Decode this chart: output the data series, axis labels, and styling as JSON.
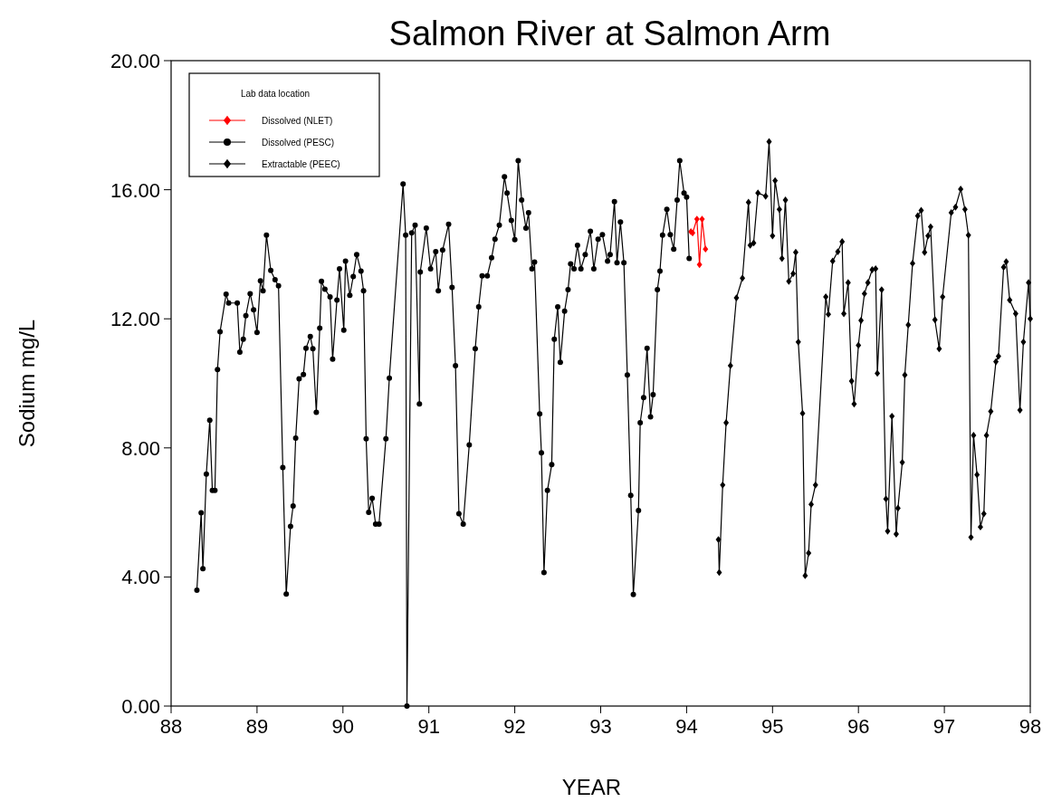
{
  "chart_data": {
    "type": "line",
    "title": "Salmon River at Salmon Arm",
    "xlabel": "YEAR",
    "ylabel": "Sodium mg/L",
    "legend_title": "Lab data location",
    "legend": "top left",
    "grid": false,
    "xlim": [
      88,
      98
    ],
    "xticks": [
      88,
      89,
      90,
      91,
      92,
      93,
      94,
      95,
      96,
      97,
      98
    ],
    "ylim": [
      0,
      20
    ],
    "yticks": [
      {
        "value": 0,
        "label": "0.00"
      },
      {
        "value": 4,
        "label": "4.00"
      },
      {
        "value": 8,
        "label": "8.00"
      },
      {
        "value": 12,
        "label": "12.00"
      },
      {
        "value": 16,
        "label": "16.00"
      },
      {
        "value": 20,
        "label": "20.00"
      }
    ],
    "series": [
      {
        "name": "Dissolved (NLET)",
        "color": "#ff0000",
        "marker": "diamond",
        "x": [
          94.05,
          94.07,
          94.12,
          94.15,
          94.18,
          94.22
        ],
        "values": [
          14.7,
          14.66,
          15.09,
          13.68,
          15.09,
          14.16
        ]
      },
      {
        "name": "Dissolved (PESC)",
        "color": "#000000",
        "marker": "circle",
        "x": [
          88.3,
          88.35,
          88.37,
          88.41,
          88.45,
          88.48,
          88.51,
          88.54,
          88.57,
          88.64,
          88.67,
          88.77,
          88.8,
          88.84,
          88.87,
          88.92,
          88.96,
          89.0,
          89.04,
          89.07,
          89.11,
          89.16,
          89.21,
          89.25,
          89.3,
          89.34,
          89.39,
          89.42,
          89.45,
          89.49,
          89.54,
          89.57,
          89.62,
          89.65,
          89.69,
          89.73,
          89.75,
          89.79,
          89.85,
          89.88,
          89.93,
          89.96,
          90.01,
          90.03,
          90.08,
          90.12,
          90.16,
          90.21,
          90.24,
          90.27,
          90.3,
          90.34,
          90.38,
          90.42,
          90.5,
          90.54,
          90.7,
          90.73,
          90.745,
          90.8,
          90.84,
          90.89,
          90.9,
          90.97,
          91.02,
          91.08,
          91.11,
          91.16,
          91.23,
          91.27,
          91.31,
          91.35,
          91.4,
          91.47,
          91.54,
          91.58,
          91.62,
          91.68,
          91.73,
          91.77,
          91.82,
          91.88,
          91.91,
          91.96,
          92.0,
          92.04,
          92.08,
          92.13,
          92.16,
          92.2,
          92.23,
          92.29,
          92.31,
          92.34,
          92.38,
          92.43,
          92.46,
          92.5,
          92.53,
          92.58,
          92.62,
          92.65,
          92.69,
          92.73,
          92.77,
          92.82,
          92.88,
          92.92,
          92.97,
          93.02,
          93.08,
          93.11,
          93.16,
          93.19,
          93.23,
          93.27,
          93.31,
          93.35,
          93.38,
          93.44,
          93.46,
          93.5,
          93.54,
          93.58,
          93.61,
          93.66,
          93.69,
          93.72,
          93.77,
          93.81,
          93.85,
          93.89,
          93.92,
          93.97,
          94.0,
          94.03
        ],
        "values": [
          3.59,
          5.99,
          4.26,
          7.19,
          8.86,
          6.68,
          6.68,
          10.43,
          11.6,
          12.76,
          12.49,
          12.49,
          10.97,
          11.37,
          12.1,
          12.78,
          12.28,
          11.58,
          13.18,
          12.87,
          14.59,
          13.5,
          13.21,
          13.02,
          7.39,
          3.47,
          5.57,
          6.2,
          8.3,
          10.14,
          10.27,
          11.09,
          11.45,
          11.07,
          9.1,
          11.71,
          13.16,
          12.92,
          12.68,
          10.75,
          12.58,
          13.55,
          11.65,
          13.79,
          12.73,
          13.31,
          13.99,
          13.48,
          12.87,
          8.28,
          6.0,
          6.44,
          5.64,
          5.64,
          8.28,
          10.16,
          16.18,
          14.59,
          0,
          14.66,
          14.9,
          9.36,
          13.45,
          14.81,
          13.55,
          14.08,
          12.87,
          14.13,
          14.93,
          12.97,
          10.55,
          5.96,
          5.64,
          8.09,
          11.07,
          12.37,
          13.33,
          13.33,
          13.89,
          14.47,
          14.9,
          16.4,
          15.9,
          15.05,
          14.45,
          16.9,
          15.68,
          14.81,
          15.29,
          13.55,
          13.76,
          9.05,
          7.85,
          4.14,
          6.68,
          7.48,
          11.37,
          12.37,
          10.65,
          12.24,
          12.9,
          13.7,
          13.55,
          14.28,
          13.55,
          13.99,
          14.71,
          13.55,
          14.47,
          14.61,
          13.79,
          13.99,
          15.63,
          13.74,
          15.0,
          13.74,
          10.26,
          6.53,
          3.46,
          6.06,
          8.78,
          9.56,
          11.09,
          8.96,
          9.65,
          12.9,
          13.48,
          14.59,
          15.39,
          14.61,
          14.16,
          15.68,
          16.9,
          15.9,
          15.77,
          13.87
        ]
      },
      {
        "name": "Extractable (PEEC)",
        "color": "#000000",
        "marker": "diamond",
        "x": [
          94.37,
          94.38,
          94.42,
          94.46,
          94.51,
          94.58,
          94.65,
          94.72,
          94.74,
          94.78,
          94.83,
          94.92,
          94.96,
          95.0,
          95.03,
          95.08,
          95.11,
          95.15,
          95.19,
          95.24,
          95.27,
          95.3,
          95.35,
          95.38,
          95.42,
          95.45,
          95.5,
          95.62,
          95.65,
          95.7,
          95.76,
          95.81,
          95.83,
          95.88,
          95.92,
          95.95,
          96.0,
          96.03,
          96.07,
          96.11,
          96.16,
          96.2,
          96.22,
          96.27,
          96.32,
          96.34,
          96.39,
          96.44,
          96.46,
          96.51,
          96.54,
          96.58,
          96.63,
          96.69,
          96.73,
          96.77,
          96.81,
          96.84,
          96.89,
          96.94,
          96.98,
          97.08,
          97.13,
          97.19,
          97.24,
          97.28,
          97.31,
          97.34,
          97.38,
          97.42,
          97.46,
          97.49,
          97.54,
          97.6,
          97.63,
          97.69,
          97.72,
          97.76,
          97.83,
          97.88,
          97.92,
          97.98,
          98.0
        ],
        "values": [
          5.16,
          4.14,
          6.85,
          8.78,
          10.55,
          12.65,
          13.26,
          15.61,
          14.28,
          14.35,
          15.9,
          15.8,
          17.49,
          14.57,
          16.28,
          15.39,
          13.87,
          15.68,
          13.16,
          13.4,
          14.06,
          11.28,
          9.07,
          4.04,
          4.74,
          6.25,
          6.85,
          12.68,
          12.14,
          13.79,
          14.08,
          14.39,
          12.16,
          13.12,
          10.07,
          9.36,
          11.18,
          11.95,
          12.78,
          13.12,
          13.52,
          13.55,
          10.31,
          12.9,
          6.42,
          5.42,
          8.98,
          5.33,
          6.13,
          7.55,
          10.26,
          11.81,
          13.72,
          15.19,
          15.36,
          14.06,
          14.57,
          14.85,
          11.97,
          11.07,
          12.68,
          15.29,
          15.46,
          16.02,
          15.39,
          14.59,
          5.23,
          8.39,
          7.17,
          5.55,
          5.96,
          8.39,
          9.13,
          10.67,
          10.84,
          13.6,
          13.77,
          12.58,
          12.16,
          9.17,
          11.28,
          13.12,
          12.0
        ]
      }
    ]
  }
}
